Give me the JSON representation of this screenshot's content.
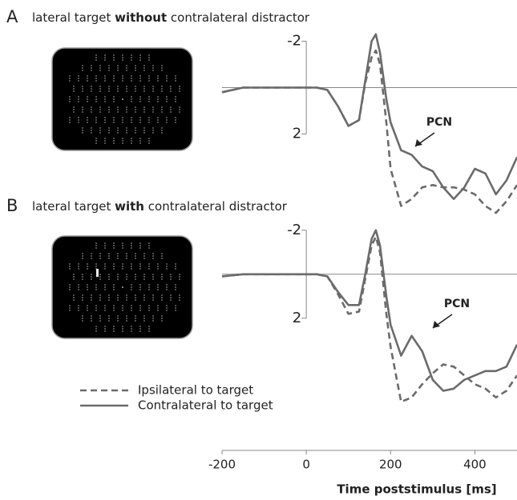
{
  "chart_data": [
    {
      "type": "line",
      "panel": "A",
      "title": [
        "lateral target ",
        "without",
        " contralateral distractor"
      ],
      "annotation": "PCN",
      "x": [
        -200,
        -150,
        -100,
        -50,
        0,
        25,
        50,
        75,
        100,
        125,
        140,
        155,
        165,
        175,
        190,
        200,
        225,
        250,
        275,
        300,
        325,
        350,
        375,
        400,
        425,
        450,
        475,
        500
      ],
      "series": [
        {
          "name": "Ipsilateral to target",
          "color": "#6b6b6b",
          "dash": true,
          "values": [
            0.2,
            0,
            0,
            0,
            0,
            0,
            0.1,
            0.8,
            1.65,
            1.4,
            -0.2,
            -1.3,
            -1.6,
            -1.0,
            1.5,
            3.5,
            5.1,
            4.8,
            4.3,
            4.2,
            4.3,
            4.3,
            4.4,
            4.6,
            5.1,
            5.4,
            4.9,
            4.2
          ]
        },
        {
          "name": "Contralateral to target",
          "color": "#6b6b6b",
          "dash": false,
          "values": [
            0.2,
            0,
            0,
            0,
            0,
            0,
            0.1,
            0.8,
            1.65,
            1.4,
            -0.3,
            -2.0,
            -2.3,
            -1.5,
            0.5,
            1.5,
            2.7,
            2.9,
            3.4,
            3.6,
            4.3,
            4.8,
            4.3,
            3.5,
            3.7,
            4.6,
            4.0,
            3.0
          ]
        }
      ],
      "xlim": [
        -200,
        500
      ],
      "ylim": [
        -2.5,
        6
      ],
      "y_inverted": true,
      "yticks": [
        -2,
        2
      ]
    },
    {
      "type": "line",
      "panel": "B",
      "title": [
        "lateral target ",
        "with",
        " contralateral distractor"
      ],
      "annotation": "PCN",
      "x": [
        -200,
        -150,
        -100,
        -50,
        0,
        25,
        50,
        75,
        100,
        125,
        140,
        155,
        165,
        175,
        190,
        200,
        225,
        250,
        275,
        300,
        325,
        350,
        375,
        400,
        425,
        450,
        475,
        500
      ],
      "series": [
        {
          "name": "Ipsilateral to target",
          "color": "#6b6b6b",
          "dash": true,
          "values": [
            0.1,
            0,
            0,
            0,
            0,
            0,
            0.1,
            0.9,
            1.8,
            1.7,
            0.2,
            -1.3,
            -1.7,
            -1.0,
            1.8,
            3.3,
            5.8,
            5.6,
            5.0,
            4.5,
            4.1,
            4.2,
            4.6,
            5.0,
            5.2,
            5.6,
            5.3,
            4.6
          ]
        },
        {
          "name": "Contralateral to target",
          "color": "#6b6b6b",
          "dash": false,
          "values": [
            0.1,
            0,
            0,
            0,
            0,
            0,
            0.1,
            0.8,
            1.4,
            1.4,
            0,
            -1.6,
            -2.0,
            -1.3,
            1.0,
            2.3,
            3.7,
            2.8,
            3.5,
            4.8,
            5.3,
            5.2,
            4.8,
            4.6,
            4.4,
            4.4,
            4.2,
            3.2
          ]
        }
      ],
      "xlim": [
        -200,
        500
      ],
      "ylim": [
        -2.5,
        6.5
      ],
      "y_inverted": true,
      "yticks": [
        -2,
        2
      ],
      "xticks": [
        -200,
        0,
        200,
        400
      ],
      "xlabel": "Time poststimulus [ms]"
    }
  ]
}
